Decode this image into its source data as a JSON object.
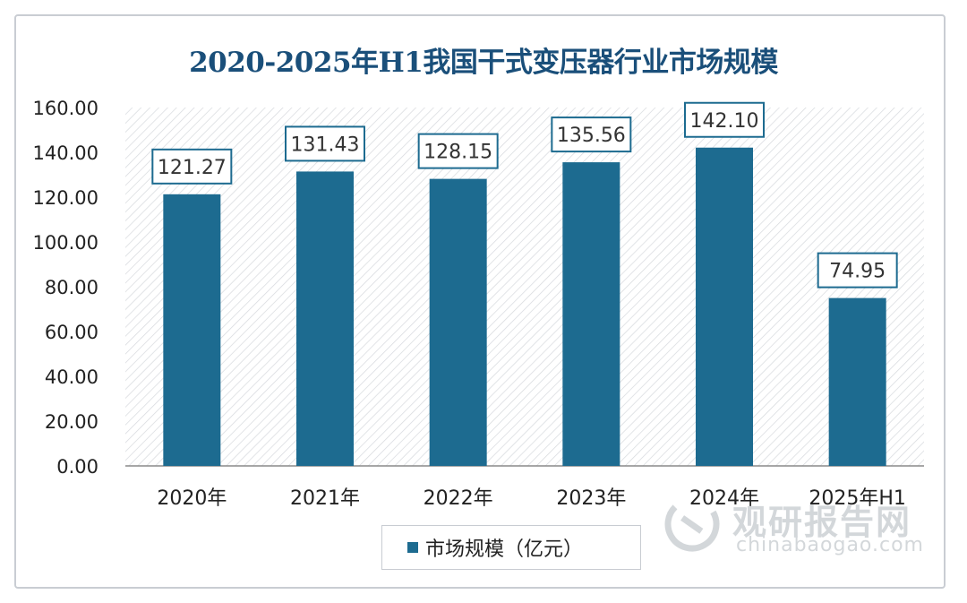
{
  "chart_data": {
    "type": "bar",
    "title": "2020-2025年H1我国干式变压器行业市场规模",
    "categories": [
      "2020年",
      "2021年",
      "2022年",
      "2023年",
      "2024年",
      "2025年H1"
    ],
    "series": [
      {
        "name": "市场规模（亿元）",
        "values": [
          121.27,
          131.43,
          128.15,
          135.56,
          142.1,
          74.95
        ]
      }
    ],
    "value_labels": [
      "121.27",
      "131.43",
      "128.15",
      "135.56",
      "142.10",
      "74.95"
    ],
    "y_ticks": [
      "0.00",
      "20.00",
      "40.00",
      "60.00",
      "80.00",
      "100.00",
      "120.00",
      "140.00",
      "160.00"
    ],
    "ylim": [
      0,
      160
    ],
    "xlabel": "",
    "ylabel": "",
    "legend_position": "bottom",
    "bar_color": "#1d6b90",
    "label_border_color": "#1d6b90"
  },
  "legend": {
    "label": "市场规模（亿元）"
  },
  "watermark": {
    "cn": "观研报告网",
    "en": "chinabaogao.com"
  }
}
